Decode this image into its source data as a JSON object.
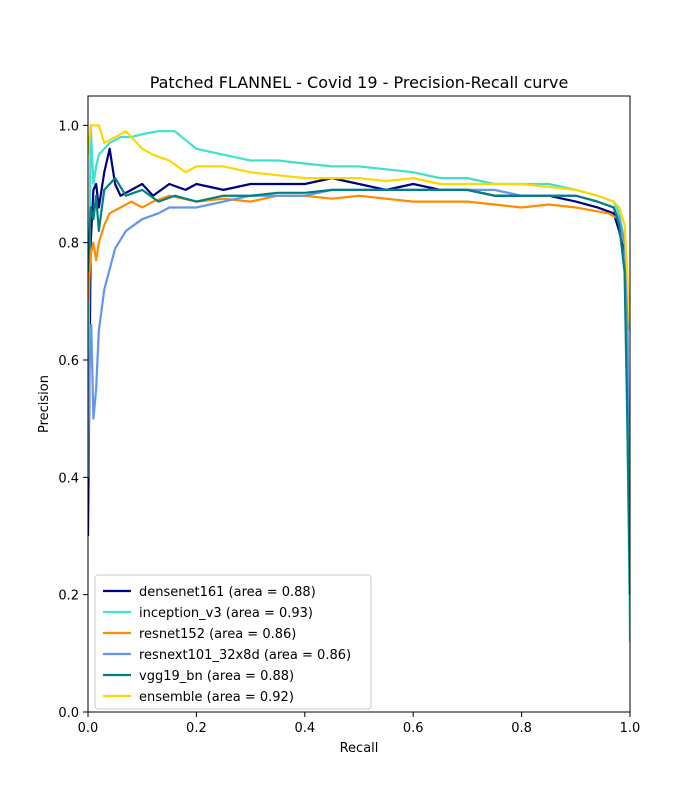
{
  "chart_data": {
    "type": "line",
    "title": "Patched FLANNEL - Covid 19 - Precision-Recall curve",
    "xlabel": "Recall",
    "ylabel": "Precision",
    "xlim": [
      0,
      1
    ],
    "ylim": [
      0,
      1.05
    ],
    "xticks": [
      0.0,
      0.2,
      0.4,
      0.6,
      0.8,
      1.0
    ],
    "yticks": [
      0.0,
      0.2,
      0.4,
      0.6,
      0.8,
      1.0
    ],
    "xtick_labels": [
      "0.0",
      "0.2",
      "0.4",
      "0.6",
      "0.8",
      "1.0"
    ],
    "ytick_labels": [
      "0.0",
      "0.2",
      "0.4",
      "0.6",
      "0.8",
      "1.0"
    ],
    "grid": false,
    "legend_position": "lower-left",
    "series": [
      {
        "name": "densenet161 (area = 0.88)",
        "color": "#000080",
        "x": [
          0.0,
          0.005,
          0.01,
          0.015,
          0.02,
          0.03,
          0.04,
          0.05,
          0.06,
          0.08,
          0.1,
          0.12,
          0.15,
          0.18,
          0.2,
          0.25,
          0.3,
          0.35,
          0.4,
          0.45,
          0.5,
          0.55,
          0.6,
          0.65,
          0.7,
          0.75,
          0.8,
          0.85,
          0.9,
          0.94,
          0.97,
          0.98,
          0.99,
          0.995,
          1.0
        ],
        "y": [
          0.3,
          0.8,
          0.89,
          0.9,
          0.86,
          0.92,
          0.96,
          0.9,
          0.88,
          0.89,
          0.9,
          0.88,
          0.9,
          0.89,
          0.9,
          0.89,
          0.9,
          0.9,
          0.9,
          0.91,
          0.9,
          0.89,
          0.9,
          0.89,
          0.89,
          0.88,
          0.88,
          0.88,
          0.87,
          0.86,
          0.85,
          0.82,
          0.78,
          0.7,
          0.65
        ]
      },
      {
        "name": "inception_v3 (area = 0.93)",
        "color": "#40E0D0",
        "x": [
          0.0,
          0.005,
          0.01,
          0.015,
          0.02,
          0.04,
          0.06,
          0.08,
          0.1,
          0.13,
          0.16,
          0.2,
          0.25,
          0.3,
          0.35,
          0.4,
          0.45,
          0.5,
          0.55,
          0.6,
          0.65,
          0.7,
          0.75,
          0.8,
          0.85,
          0.9,
          0.94,
          0.97,
          0.98,
          0.99,
          0.995,
          1.0
        ],
        "y": [
          0.5,
          1.0,
          0.9,
          0.93,
          0.95,
          0.97,
          0.98,
          0.98,
          0.985,
          0.99,
          0.99,
          0.96,
          0.95,
          0.94,
          0.94,
          0.935,
          0.93,
          0.93,
          0.925,
          0.92,
          0.91,
          0.91,
          0.9,
          0.9,
          0.9,
          0.89,
          0.88,
          0.87,
          0.85,
          0.8,
          0.5,
          0.12
        ]
      },
      {
        "name": "resnet152 (area = 0.86)",
        "color": "#FF8C00",
        "x": [
          0.0,
          0.005,
          0.01,
          0.015,
          0.02,
          0.03,
          0.04,
          0.06,
          0.08,
          0.1,
          0.12,
          0.15,
          0.2,
          0.25,
          0.3,
          0.35,
          0.4,
          0.45,
          0.5,
          0.55,
          0.6,
          0.65,
          0.7,
          0.75,
          0.8,
          0.85,
          0.9,
          0.93,
          0.96,
          0.98,
          0.99,
          0.995,
          1.0
        ],
        "y": [
          0.7,
          0.78,
          0.8,
          0.77,
          0.8,
          0.83,
          0.85,
          0.86,
          0.87,
          0.86,
          0.87,
          0.88,
          0.87,
          0.875,
          0.87,
          0.88,
          0.88,
          0.875,
          0.88,
          0.875,
          0.87,
          0.87,
          0.87,
          0.865,
          0.86,
          0.865,
          0.86,
          0.855,
          0.85,
          0.84,
          0.8,
          0.7,
          0.2
        ]
      },
      {
        "name": "resnext101_32x8d (area = 0.86)",
        "color": "#6495ED",
        "x": [
          0.0,
          0.003,
          0.006,
          0.01,
          0.015,
          0.02,
          0.03,
          0.05,
          0.07,
          0.1,
          0.13,
          0.15,
          0.2,
          0.25,
          0.3,
          0.35,
          0.4,
          0.45,
          0.5,
          0.55,
          0.6,
          0.65,
          0.7,
          0.75,
          0.8,
          0.85,
          0.9,
          0.94,
          0.97,
          0.98,
          0.99,
          0.995,
          1.0
        ],
        "y": [
          0.4,
          0.6,
          0.66,
          0.5,
          0.55,
          0.65,
          0.72,
          0.79,
          0.82,
          0.84,
          0.85,
          0.86,
          0.86,
          0.87,
          0.88,
          0.88,
          0.88,
          0.89,
          0.89,
          0.89,
          0.89,
          0.89,
          0.89,
          0.89,
          0.88,
          0.88,
          0.88,
          0.87,
          0.86,
          0.84,
          0.8,
          0.7,
          0.2
        ]
      },
      {
        "name": "vgg19_bn (area = 0.88)",
        "color": "#008080",
        "x": [
          0.0,
          0.005,
          0.01,
          0.015,
          0.02,
          0.03,
          0.04,
          0.05,
          0.07,
          0.1,
          0.13,
          0.16,
          0.2,
          0.25,
          0.3,
          0.35,
          0.4,
          0.45,
          0.5,
          0.55,
          0.6,
          0.65,
          0.7,
          0.75,
          0.8,
          0.85,
          0.9,
          0.94,
          0.97,
          0.98,
          0.99,
          0.995,
          1.0
        ],
        "y": [
          0.75,
          0.86,
          0.84,
          0.88,
          0.82,
          0.89,
          0.9,
          0.91,
          0.88,
          0.89,
          0.87,
          0.88,
          0.87,
          0.88,
          0.88,
          0.885,
          0.885,
          0.89,
          0.89,
          0.89,
          0.89,
          0.89,
          0.89,
          0.88,
          0.88,
          0.88,
          0.88,
          0.87,
          0.86,
          0.83,
          0.75,
          0.5,
          0.2
        ]
      },
      {
        "name": "ensemble (area = 0.92)",
        "color": "#FFD700",
        "x": [
          0.0,
          0.005,
          0.01,
          0.02,
          0.03,
          0.05,
          0.07,
          0.1,
          0.12,
          0.15,
          0.18,
          0.2,
          0.25,
          0.3,
          0.35,
          0.4,
          0.45,
          0.5,
          0.55,
          0.6,
          0.65,
          0.7,
          0.75,
          0.8,
          0.85,
          0.9,
          0.94,
          0.97,
          0.98,
          0.99,
          0.995,
          1.0
        ],
        "y": [
          0.95,
          1.0,
          1.0,
          1.0,
          0.97,
          0.98,
          0.99,
          0.96,
          0.95,
          0.94,
          0.92,
          0.93,
          0.93,
          0.92,
          0.915,
          0.91,
          0.91,
          0.91,
          0.905,
          0.91,
          0.9,
          0.9,
          0.9,
          0.9,
          0.895,
          0.89,
          0.88,
          0.87,
          0.86,
          0.83,
          0.75,
          0.65
        ]
      }
    ]
  }
}
